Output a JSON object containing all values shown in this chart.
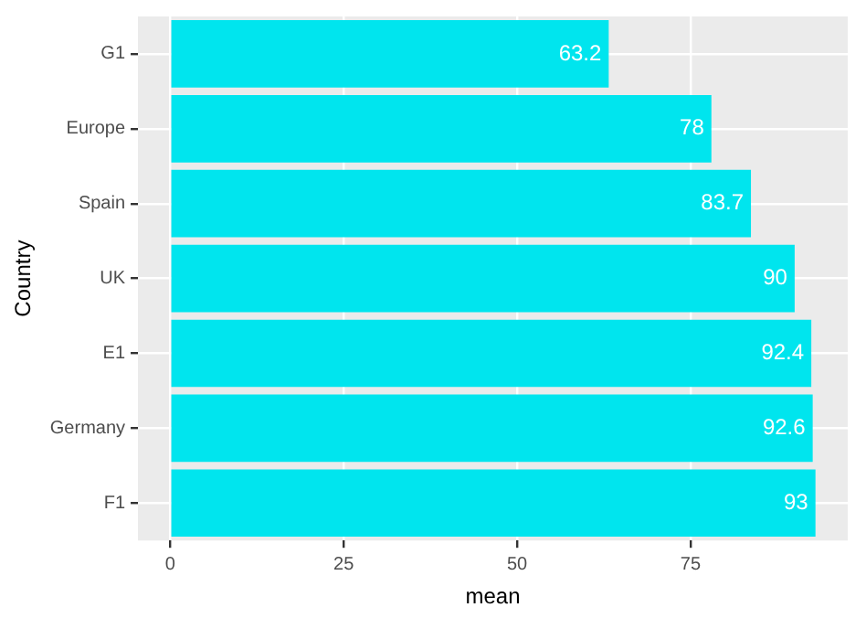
{
  "chart_data": {
    "type": "bar",
    "orientation": "horizontal",
    "categories": [
      "G1",
      "Europe",
      "Spain",
      "UK",
      "E1",
      "Germany",
      "F1"
    ],
    "values": [
      63.2,
      78,
      83.7,
      90,
      92.4,
      92.6,
      93
    ],
    "color": "#00e5ee",
    "xlim": [
      -4.65,
      97.65
    ],
    "xticks": [
      0,
      25,
      50,
      75
    ],
    "xlabel": "mean",
    "ylabel": "Country",
    "grid": true,
    "data_labels": true
  }
}
